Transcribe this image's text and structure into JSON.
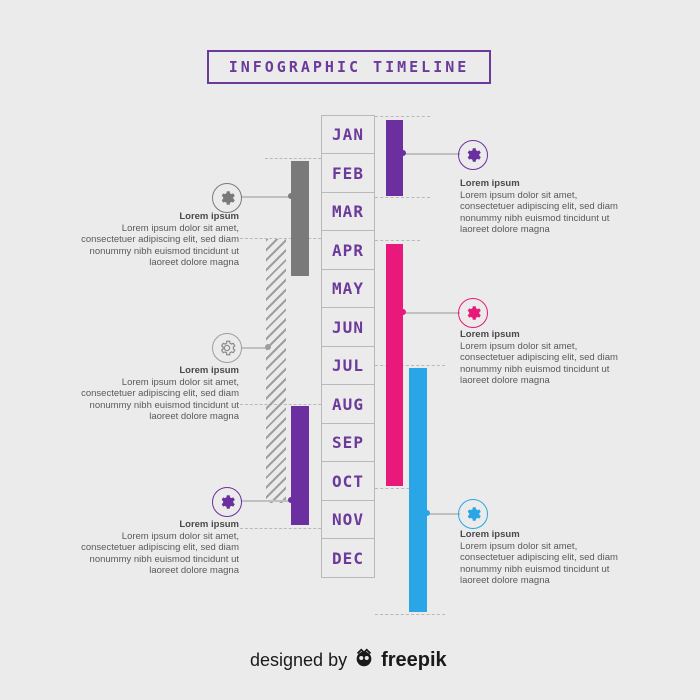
{
  "title": "INFOGRAPHIC TIMELINE",
  "months": [
    "JAN",
    "FEB",
    "MAR",
    "APR",
    "MAY",
    "JUN",
    "JUL",
    "AUG",
    "SEP",
    "OCT",
    "NOV",
    "DEC"
  ],
  "colors": {
    "purple": "#6b2fa0",
    "gray": "#7a7a7a",
    "magenta": "#e8197a",
    "blue": "#2aa6e6",
    "title": "#6b3a9b"
  },
  "blocks": [
    {
      "heading": "Lorem ipsum",
      "body": [
        "Lorem ipsum dolor sit amet,",
        "consectetuer adipiscing elit, sed diam",
        "nonummy nibh euismod tincidunt ut",
        "laoreet dolore magna"
      ],
      "icon": "gear-icon"
    },
    {
      "heading": "Lorem ipsum",
      "body": [
        "Lorem ipsum dolor sit amet,",
        "consectetuer adipiscing elit, sed diam",
        "nonummy nibh euismod tincidunt ut",
        "laoreet dolore magna"
      ],
      "icon": "gear-icon"
    },
    {
      "heading": "Lorem ipsum",
      "body": [
        "Lorem ipsum dolor sit amet,",
        "consectetuer adipiscing elit, sed diam",
        "nonummy nibh euismod tincidunt ut",
        "laoreet dolore magna"
      ],
      "icon": "gear-icon"
    },
    {
      "heading": "Lorem ipsum",
      "body": [
        "Lorem ipsum dolor sit amet,",
        "consectetuer adipiscing elit, sed diam",
        "nonummy nibh euismod tincidunt ut",
        "laoreet dolore magna"
      ],
      "icon": "gear-icon"
    },
    {
      "heading": "Lorem ipsum",
      "body": [
        "Lorem ipsum dolor sit amet,",
        "consectetuer adipiscing elit, sed diam",
        "nonummy nibh euismod tincidunt ut",
        "laoreet dolore magna"
      ],
      "icon": "gear-icon"
    },
    {
      "heading": "Lorem ipsum",
      "body": [
        "Lorem ipsum dolor sit amet,",
        "consectetuer adipiscing elit, sed diam",
        "nonummy nibh euismod tincidunt ut",
        "laoreet dolore magna"
      ],
      "icon": "gear-icon"
    }
  ],
  "footer": {
    "designed_by": "designed by",
    "brand": "freepik"
  }
}
